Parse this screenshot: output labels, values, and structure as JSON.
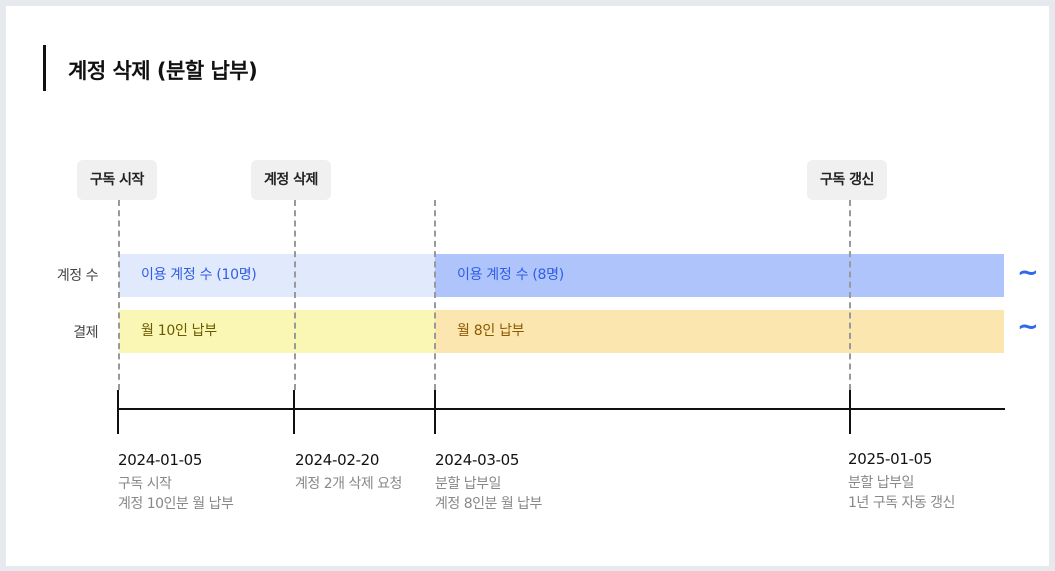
{
  "title": "계정 삭제 (분할 납부)",
  "markers": [
    {
      "label": "구독 시작"
    },
    {
      "label": "계정 삭제"
    },
    {
      "label": "구독 갱신"
    }
  ],
  "rows": [
    {
      "label": "계정 수"
    },
    {
      "label": "결제"
    }
  ],
  "bars": {
    "accounts": [
      {
        "label": "이용 계정 수 (10명)",
        "color": "#e1e9fc",
        "text_color": "#2f5ee8"
      },
      {
        "label": "이용 계정 수 (8명)",
        "color": "#aec4fb",
        "text_color": "#2f5ee8"
      }
    ],
    "payment": [
      {
        "label": "월 10인 납부",
        "color": "#faf6b4",
        "text_color": "#6b5a00"
      },
      {
        "label": "월 8인 납부",
        "color": "#fce6b0",
        "text_color": "#8a5a00"
      }
    ]
  },
  "continuation_symbol": "~",
  "timeline": [
    {
      "date": "2024-01-05",
      "lines": [
        "구독 시작",
        "계정 10인분 월 납부"
      ]
    },
    {
      "date": "2024-02-20",
      "lines": [
        "계정 2개 삭제 요청"
      ]
    },
    {
      "date": "2024-03-05",
      "lines": [
        "분할 납부일",
        "계정 8인분 월 납부"
      ]
    },
    {
      "date": "2025-01-05",
      "lines": [
        "분할 납부일",
        "1년 구독 자동 갱신"
      ]
    }
  ]
}
